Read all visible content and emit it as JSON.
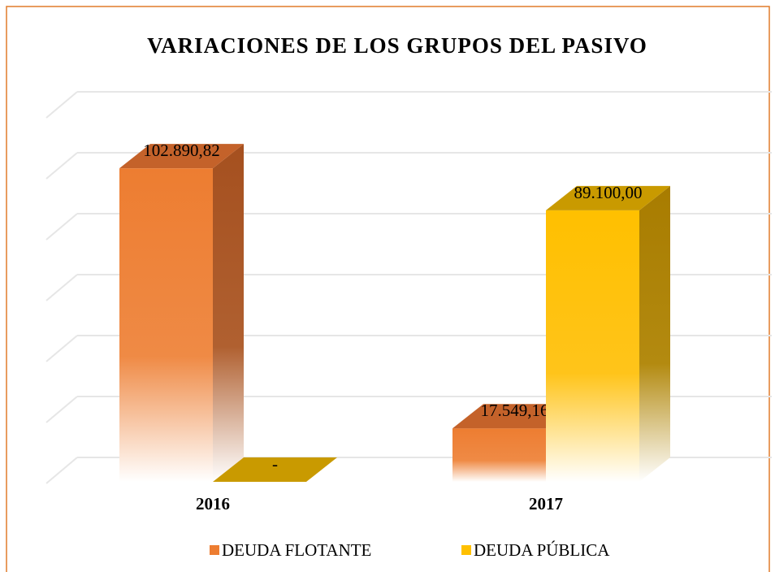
{
  "chart_data": {
    "type": "bar3d",
    "title": "VARIACIONES DE LOS GRUPOS DEL PASIVO",
    "categories": [
      "2016",
      "2017"
    ],
    "series": [
      {
        "name": "DEUDA FLOTANTE",
        "color": "#ed7d31",
        "values": [
          102890.82,
          17549.16
        ],
        "value_labels": [
          "102.890,82",
          "17.549,16"
        ]
      },
      {
        "name": "DEUDA PÚBLICA",
        "color": "#ffc000",
        "values": [
          0,
          89100.0
        ],
        "value_labels": [
          "-",
          "89.100,00"
        ]
      }
    ],
    "ylim": [
      0,
      120000
    ],
    "yticks": [
      0,
      20000,
      40000,
      60000,
      80000,
      100000,
      120000
    ],
    "grid": true,
    "legend": "bottom"
  }
}
